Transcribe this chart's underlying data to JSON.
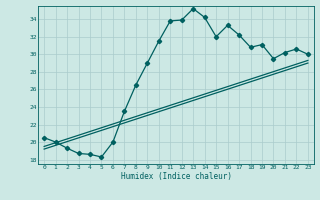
{
  "title": "",
  "xlabel": "Humidex (Indice chaleur)",
  "ylabel": "",
  "bg_color": "#cce8e4",
  "line_color": "#006060",
  "grid_color": "#aacccc",
  "xlim": [
    -0.5,
    23.5
  ],
  "ylim": [
    17.5,
    35.5
  ],
  "yticks": [
    18,
    20,
    22,
    24,
    26,
    28,
    30,
    32,
    34
  ],
  "xticks": [
    0,
    1,
    2,
    3,
    4,
    5,
    6,
    7,
    8,
    9,
    10,
    11,
    12,
    13,
    14,
    15,
    16,
    17,
    18,
    19,
    20,
    21,
    22,
    23
  ],
  "series1_x": [
    0,
    1,
    2,
    3,
    4,
    5,
    6,
    7,
    8,
    9,
    10,
    11,
    12,
    13,
    14,
    15,
    16,
    17,
    18,
    19,
    20,
    21,
    22,
    23
  ],
  "series1_y": [
    20.5,
    20.0,
    19.3,
    18.7,
    18.6,
    18.3,
    20.0,
    23.5,
    26.5,
    29.0,
    31.5,
    33.8,
    33.9,
    35.2,
    34.2,
    32.0,
    33.3,
    32.2,
    30.8,
    31.1,
    29.5,
    30.2,
    30.6,
    30.0
  ],
  "series2_x": [
    0,
    23
  ],
  "series2_y": [
    19.2,
    29.0
  ],
  "series3_x": [
    0,
    23
  ],
  "series3_y": [
    19.5,
    29.3
  ],
  "marker": "D",
  "markersize": 2.2,
  "linewidth": 0.9,
  "tick_fontsize": 4.5,
  "xlabel_fontsize": 5.5
}
